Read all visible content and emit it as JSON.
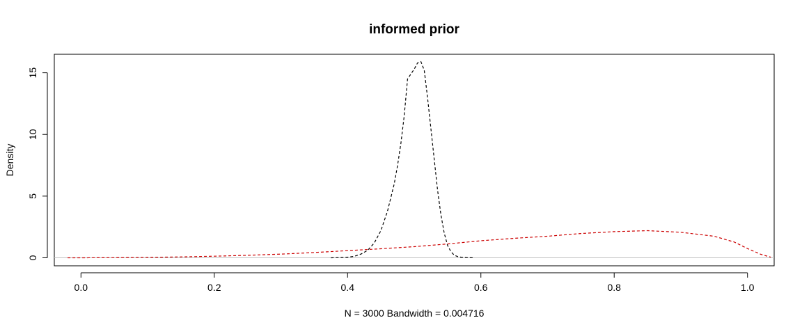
{
  "chart_data": {
    "type": "line",
    "title": "informed prior",
    "xlabel": "N = 3000   Bandwidth = 0.004716",
    "ylabel": "Density",
    "xlim": [
      -0.04,
      1.04
    ],
    "ylim": [
      -0.65,
      16.5
    ],
    "x_ticks": [
      "0.0",
      "0.2",
      "0.4",
      "0.6",
      "0.8",
      "1.0"
    ],
    "x_tick_values": [
      0.0,
      0.2,
      0.4,
      0.6,
      0.8,
      1.0
    ],
    "y_ticks": [
      "0",
      "5",
      "10",
      "15"
    ],
    "y_tick_values": [
      0,
      5,
      10,
      15
    ],
    "zero_line_color": "#bebebe",
    "grid": false,
    "series": [
      {
        "color": "#000000",
        "line_style": "dashed",
        "x": [
          0.375,
          0.39,
          0.4,
          0.41,
          0.42,
          0.43,
          0.44,
          0.45,
          0.46,
          0.47,
          0.475,
          0.48,
          0.485,
          0.49,
          0.495,
          0.5,
          0.505,
          0.51,
          0.515,
          0.52,
          0.525,
          0.53,
          0.535,
          0.54,
          0.545,
          0.55,
          0.555,
          0.56,
          0.565,
          0.57,
          0.58,
          0.59
        ],
        "y": [
          0.0,
          0.02,
          0.05,
          0.12,
          0.3,
          0.6,
          1.2,
          2.2,
          3.8,
          6.0,
          7.5,
          9.3,
          11.5,
          14.5,
          14.9,
          15.3,
          15.8,
          15.9,
          15.2,
          13.0,
          10.5,
          8.0,
          5.5,
          3.5,
          2.0,
          1.0,
          0.5,
          0.22,
          0.1,
          0.05,
          0.01,
          0.0
        ]
      },
      {
        "color": "#cc0000",
        "line_style": "dashed",
        "x": [
          -0.02,
          0.0,
          0.05,
          0.1,
          0.15,
          0.2,
          0.25,
          0.3,
          0.35,
          0.4,
          0.45,
          0.5,
          0.55,
          0.6,
          0.65,
          0.7,
          0.75,
          0.8,
          0.85,
          0.9,
          0.95,
          0.98,
          1.0,
          1.02,
          1.035
        ],
        "y": [
          0.0,
          0.0,
          0.01,
          0.03,
          0.07,
          0.13,
          0.2,
          0.3,
          0.43,
          0.58,
          0.73,
          0.9,
          1.12,
          1.38,
          1.58,
          1.75,
          1.97,
          2.12,
          2.2,
          2.07,
          1.75,
          1.28,
          0.75,
          0.28,
          0.05
        ]
      }
    ]
  }
}
